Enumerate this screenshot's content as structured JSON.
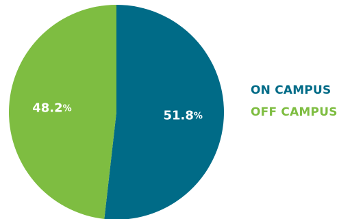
{
  "chart_data": {
    "type": "pie",
    "slices": [
      {
        "label": "ON CAMPUS",
        "value": 51.8,
        "display": "51.8%",
        "color": "#006b87"
      },
      {
        "label": "OFF CAMPUS",
        "value": 48.2,
        "display": "48.2%",
        "color": "#7ebd41"
      }
    ],
    "legend_position": "right"
  }
}
